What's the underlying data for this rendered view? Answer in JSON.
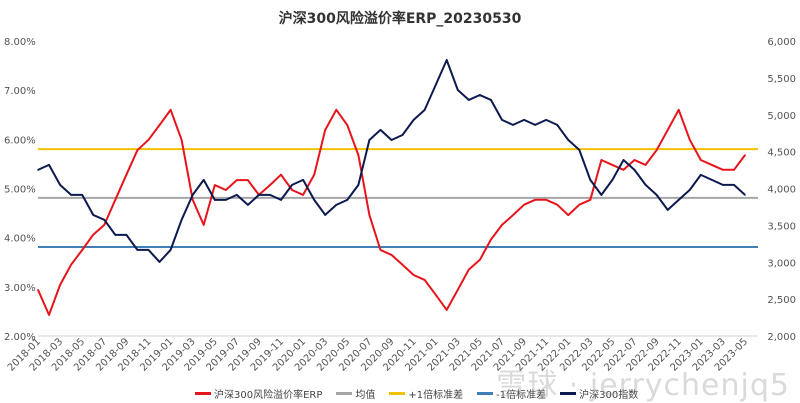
{
  "chart_data": {
    "type": "line",
    "title": "沪深300风险溢价率ERP_20230530",
    "x": [
      "2018-01",
      "2018-02",
      "2018-03",
      "2018-04",
      "2018-05",
      "2018-06",
      "2018-07",
      "2018-08",
      "2018-09",
      "2018-10",
      "2018-11",
      "2018-12",
      "2019-01",
      "2019-02",
      "2019-03",
      "2019-04",
      "2019-05",
      "2019-06",
      "2019-07",
      "2019-08",
      "2019-09",
      "2019-10",
      "2019-11",
      "2019-12",
      "2020-01",
      "2020-02",
      "2020-03",
      "2020-04",
      "2020-05",
      "2020-06",
      "2020-07",
      "2020-08",
      "2020-09",
      "2020-10",
      "2020-11",
      "2020-12",
      "2021-01",
      "2021-02",
      "2021-03",
      "2021-04",
      "2021-05",
      "2021-06",
      "2021-07",
      "2021-08",
      "2021-09",
      "2021-10",
      "2021-11",
      "2021-12",
      "2022-01",
      "2022-02",
      "2022-03",
      "2022-04",
      "2022-05",
      "2022-06",
      "2022-07",
      "2022-08",
      "2022-09",
      "2022-10",
      "2022-11",
      "2022-12",
      "2023-01",
      "2023-02",
      "2023-03",
      "2023-04",
      "2023-05"
    ],
    "xtick_labels": [
      "2018-01",
      "2018-03",
      "2018-05",
      "2018-07",
      "2018-09",
      "2018-11",
      "2019-01",
      "2019-03",
      "2019-05",
      "2019-07",
      "2019-09",
      "2019-11",
      "2020-01",
      "2020-03",
      "2020-05",
      "2020-07",
      "2020-09",
      "2020-11",
      "2021-01",
      "2021-03",
      "2021-05",
      "2021-07",
      "2021-09",
      "2021-11",
      "2022-01",
      "2022-03",
      "2022-05",
      "2022-07",
      "2022-09",
      "2022-11",
      "2023-01",
      "2023-03",
      "2023-05"
    ],
    "y_left": {
      "range": [
        2.0,
        8.0
      ],
      "ticks": [
        "2.00%",
        "3.00%",
        "4.00%",
        "5.00%",
        "6.00%",
        "7.00%",
        "8.00%"
      ]
    },
    "y_right": {
      "range": [
        2000,
        6000
      ],
      "ticks": [
        "2,000",
        "2,500",
        "3,000",
        "3,500",
        "4,000",
        "4,500",
        "5,000",
        "5,500",
        "6,000"
      ]
    },
    "grid": false,
    "legend_placement": "bottom",
    "series": [
      {
        "name": "沪深300风险溢价率ERP",
        "axis": "left",
        "color": "#e8141b",
        "values": [
          2.94,
          2.43,
          3.04,
          3.45,
          3.75,
          4.06,
          4.26,
          4.77,
          5.28,
          5.78,
          5.99,
          6.29,
          6.6,
          5.99,
          4.77,
          4.26,
          5.07,
          4.97,
          5.17,
          5.17,
          4.87,
          5.07,
          5.28,
          4.97,
          4.87,
          5.28,
          6.19,
          6.6,
          6.29,
          5.68,
          4.46,
          3.75,
          3.65,
          3.45,
          3.24,
          3.14,
          2.84,
          2.53,
          2.94,
          3.35,
          3.55,
          3.96,
          4.26,
          4.46,
          4.67,
          4.77,
          4.77,
          4.67,
          4.46,
          4.67,
          4.77,
          5.58,
          5.48,
          5.38,
          5.58,
          5.48,
          5.78,
          6.19,
          6.6,
          5.99,
          5.58,
          5.48,
          5.38,
          5.38,
          5.68
        ]
      },
      {
        "name": "均值",
        "axis": "left",
        "color": "#a6a6a6",
        "constant": 4.81
      },
      {
        "name": "+1倍标准差",
        "axis": "left",
        "color": "#f2c200",
        "constant": 5.8
      },
      {
        "name": "-1倍标准差",
        "axis": "left",
        "color": "#3f7fb5",
        "constant": 3.81
      },
      {
        "name": "沪深300指数",
        "axis": "right",
        "color": "#0c1a4f",
        "values": [
          4252,
          4320,
          4049,
          3913,
          3913,
          3642,
          3575,
          3371,
          3371,
          3168,
          3168,
          3005,
          3168,
          3575,
          3913,
          4116,
          3846,
          3846,
          3913,
          3778,
          3913,
          3913,
          3846,
          4049,
          4116,
          3846,
          3642,
          3778,
          3846,
          4049,
          4658,
          4794,
          4658,
          4726,
          4930,
          5065,
          5404,
          5743,
          5336,
          5201,
          5268,
          5201,
          4930,
          4862,
          4930,
          4862,
          4930,
          4862,
          4658,
          4523,
          4116,
          3913,
          4116,
          4387,
          4252,
          4049,
          3913,
          3710,
          3846,
          3981,
          4184,
          4116,
          4049,
          4049,
          3913
        ]
      }
    ]
  },
  "watermark": "雪球 · jerrychenjq5"
}
